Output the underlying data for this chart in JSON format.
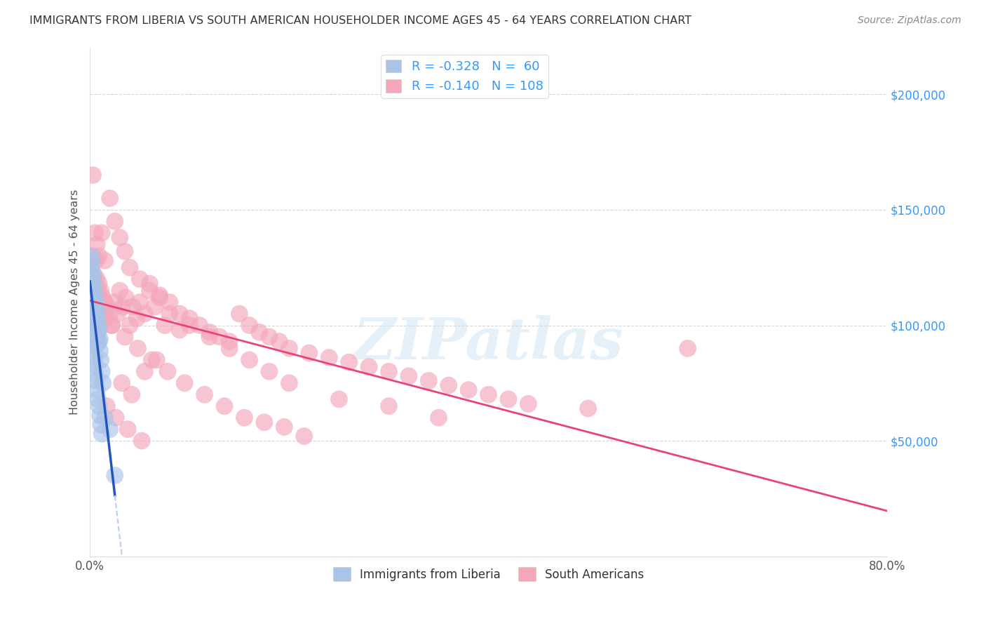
{
  "title": "IMMIGRANTS FROM LIBERIA VS SOUTH AMERICAN HOUSEHOLDER INCOME AGES 45 - 64 YEARS CORRELATION CHART",
  "source": "Source: ZipAtlas.com",
  "ylabel": "Householder Income Ages 45 - 64 years",
  "ytick_labels": [
    "$50,000",
    "$100,000",
    "$150,000",
    "$200,000"
  ],
  "ytick_values": [
    50000,
    100000,
    150000,
    200000
  ],
  "legend_liberia": {
    "R": -0.328,
    "N": 60,
    "label": "Immigrants from Liberia"
  },
  "legend_south": {
    "R": -0.14,
    "N": 108,
    "label": "South Americans"
  },
  "liberia_color": "#aac4e8",
  "south_color": "#f4a7b9",
  "liberia_line_color": "#2255bb",
  "south_line_color": "#e8447a",
  "liberia_dashed_color": "#b8d0ee",
  "background_color": "#ffffff",
  "grid_color": "#cccccc",
  "watermark": "ZIPatlas",
  "xlim": [
    0.0,
    0.8
  ],
  "ylim": [
    0,
    220000
  ],
  "south_intercept": 112000,
  "south_slope": -27000,
  "liberia_intercept": 122000,
  "liberia_slope": -900000,
  "liberia_x": [
    0.001,
    0.001,
    0.001,
    0.001,
    0.002,
    0.002,
    0.002,
    0.002,
    0.002,
    0.003,
    0.003,
    0.003,
    0.003,
    0.003,
    0.004,
    0.004,
    0.004,
    0.004,
    0.004,
    0.005,
    0.005,
    0.005,
    0.005,
    0.006,
    0.006,
    0.006,
    0.006,
    0.007,
    0.007,
    0.007,
    0.008,
    0.008,
    0.008,
    0.009,
    0.009,
    0.01,
    0.01,
    0.011,
    0.012,
    0.013,
    0.001,
    0.001,
    0.002,
    0.002,
    0.003,
    0.003,
    0.004,
    0.004,
    0.005,
    0.005,
    0.006,
    0.007,
    0.008,
    0.009,
    0.01,
    0.011,
    0.012,
    0.015,
    0.02,
    0.025
  ],
  "liberia_y": [
    130000,
    125000,
    120000,
    118000,
    128000,
    123000,
    118000,
    113000,
    108000,
    122000,
    117000,
    112000,
    107000,
    102000,
    118000,
    113000,
    108000,
    103000,
    98000,
    114000,
    109000,
    104000,
    99000,
    110000,
    105000,
    100000,
    95000,
    106000,
    101000,
    96000,
    102000,
    97000,
    92000,
    98000,
    93000,
    94000,
    89000,
    85000,
    80000,
    75000,
    115000,
    110000,
    105000,
    100000,
    97000,
    93000,
    90000,
    86000,
    83000,
    79000,
    76000,
    72000,
    68000,
    65000,
    61000,
    57000,
    53000,
    60000,
    55000,
    35000
  ],
  "south_x": [
    0.001,
    0.002,
    0.003,
    0.004,
    0.005,
    0.006,
    0.007,
    0.008,
    0.009,
    0.01,
    0.011,
    0.012,
    0.013,
    0.014,
    0.015,
    0.016,
    0.018,
    0.02,
    0.022,
    0.025,
    0.028,
    0.03,
    0.033,
    0.036,
    0.04,
    0.043,
    0.047,
    0.05,
    0.055,
    0.06,
    0.065,
    0.07,
    0.075,
    0.08,
    0.09,
    0.1,
    0.11,
    0.12,
    0.13,
    0.14,
    0.15,
    0.16,
    0.17,
    0.18,
    0.19,
    0.2,
    0.22,
    0.24,
    0.26,
    0.28,
    0.3,
    0.32,
    0.34,
    0.36,
    0.38,
    0.4,
    0.42,
    0.44,
    0.5,
    0.6,
    0.003,
    0.005,
    0.007,
    0.009,
    0.012,
    0.015,
    0.02,
    0.025,
    0.03,
    0.035,
    0.04,
    0.05,
    0.06,
    0.07,
    0.08,
    0.09,
    0.1,
    0.12,
    0.14,
    0.16,
    0.18,
    0.2,
    0.25,
    0.3,
    0.35,
    0.004,
    0.008,
    0.014,
    0.022,
    0.035,
    0.048,
    0.062,
    0.078,
    0.095,
    0.115,
    0.135,
    0.155,
    0.175,
    0.195,
    0.215,
    0.055,
    0.032,
    0.042,
    0.017,
    0.026,
    0.038,
    0.052,
    0.067
  ],
  "south_y": [
    125000,
    118000,
    130000,
    122000,
    115000,
    128000,
    120000,
    113000,
    118000,
    110000,
    115000,
    108000,
    112000,
    105000,
    110000,
    103000,
    108000,
    105000,
    100000,
    110000,
    105000,
    115000,
    108000,
    112000,
    100000,
    108000,
    103000,
    110000,
    105000,
    115000,
    108000,
    112000,
    100000,
    105000,
    98000,
    103000,
    100000,
    97000,
    95000,
    93000,
    105000,
    100000,
    97000,
    95000,
    93000,
    90000,
    88000,
    86000,
    84000,
    82000,
    80000,
    78000,
    76000,
    74000,
    72000,
    70000,
    68000,
    66000,
    64000,
    90000,
    165000,
    140000,
    135000,
    130000,
    140000,
    128000,
    155000,
    145000,
    138000,
    132000,
    125000,
    120000,
    118000,
    113000,
    110000,
    105000,
    100000,
    95000,
    90000,
    85000,
    80000,
    75000,
    68000,
    65000,
    60000,
    120000,
    115000,
    108000,
    100000,
    95000,
    90000,
    85000,
    80000,
    75000,
    70000,
    65000,
    60000,
    58000,
    56000,
    52000,
    80000,
    75000,
    70000,
    65000,
    60000,
    55000,
    50000,
    85000
  ]
}
